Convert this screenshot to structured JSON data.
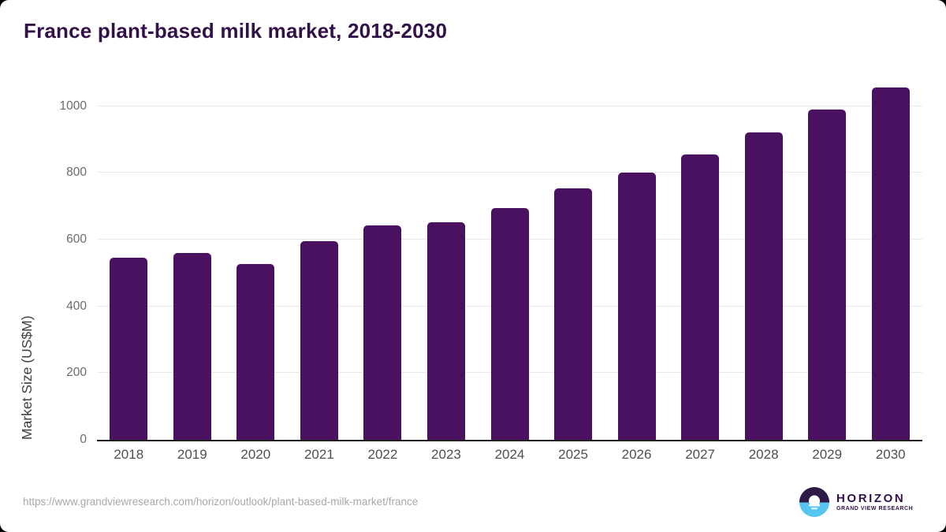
{
  "header": {
    "title": "France plant-based milk market, 2018-2030",
    "title_color": "#321149"
  },
  "chart_data": {
    "type": "bar",
    "title": "France plant-based milk market, 2018-2030",
    "categories": [
      "2018",
      "2019",
      "2020",
      "2021",
      "2022",
      "2023",
      "2024",
      "2025",
      "2026",
      "2027",
      "2028",
      "2029",
      "2030"
    ],
    "values": [
      546,
      560,
      526,
      595,
      643,
      651,
      695,
      753,
      800,
      856,
      922,
      991,
      1056
    ],
    "xlabel": "",
    "ylabel": "Market Size (US$M)",
    "ylim": [
      0,
      1082
    ],
    "yticks": [
      0,
      200,
      400,
      600,
      800,
      1000
    ],
    "grid": true,
    "legend": false,
    "bar_color": "#4a1161",
    "gridline_color": "#e9e9e9",
    "axis_line_color": "#1f1f1f",
    "tick_label_color": "#6b6b6b"
  },
  "footer": {
    "source_url": "https://www.grandviewresearch.com/horizon/outlook/plant-based-milk-market/france",
    "logo": {
      "wordmark": "HORIZON",
      "subtitle": "GRAND VIEW RESEARCH",
      "icon_purple": "#2d1a46",
      "icon_blue": "#56c5f0",
      "text_color": "#321149"
    }
  }
}
